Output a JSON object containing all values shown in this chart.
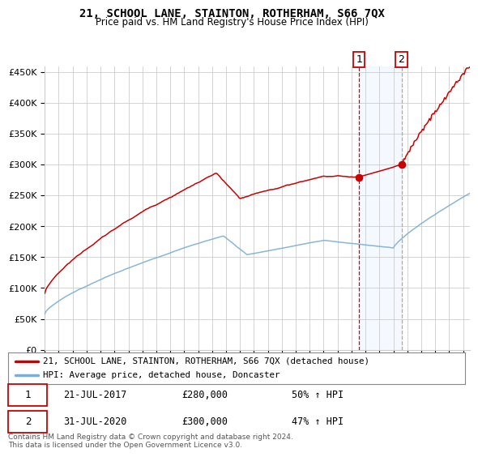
{
  "title": "21, SCHOOL LANE, STAINTON, ROTHERHAM, S66 7QX",
  "subtitle": "Price paid vs. HM Land Registry's House Price Index (HPI)",
  "ylim": [
    0,
    460000
  ],
  "yticks": [
    0,
    50000,
    100000,
    150000,
    200000,
    250000,
    300000,
    350000,
    400000,
    450000
  ],
  "ytick_labels": [
    "£0",
    "£50K",
    "£100K",
    "£150K",
    "£200K",
    "£250K",
    "£300K",
    "£350K",
    "£400K",
    "£450K"
  ],
  "xmin": 1995,
  "xmax": 2025.5,
  "sale1_date_num": 2017.54,
  "sale1_price": 280000,
  "sale1_label": "21-JUL-2017",
  "sale1_pct": "50% ↑ HPI",
  "sale2_date_num": 2020.58,
  "sale2_price": 300000,
  "sale2_label": "31-JUL-2020",
  "sale2_pct": "47% ↑ HPI",
  "legend_line1": "21, SCHOOL LANE, STAINTON, ROTHERHAM, S66 7QX (detached house)",
  "legend_line2": "HPI: Average price, detached house, Doncaster",
  "footer": "Contains HM Land Registry data © Crown copyright and database right 2024.\nThis data is licensed under the Open Government Licence v3.0.",
  "red_color": "#cc0000",
  "blue_color": "#7aafd4",
  "shade_color": "#ddeeff",
  "grid_color": "#cccccc",
  "background_color": "#ffffff"
}
